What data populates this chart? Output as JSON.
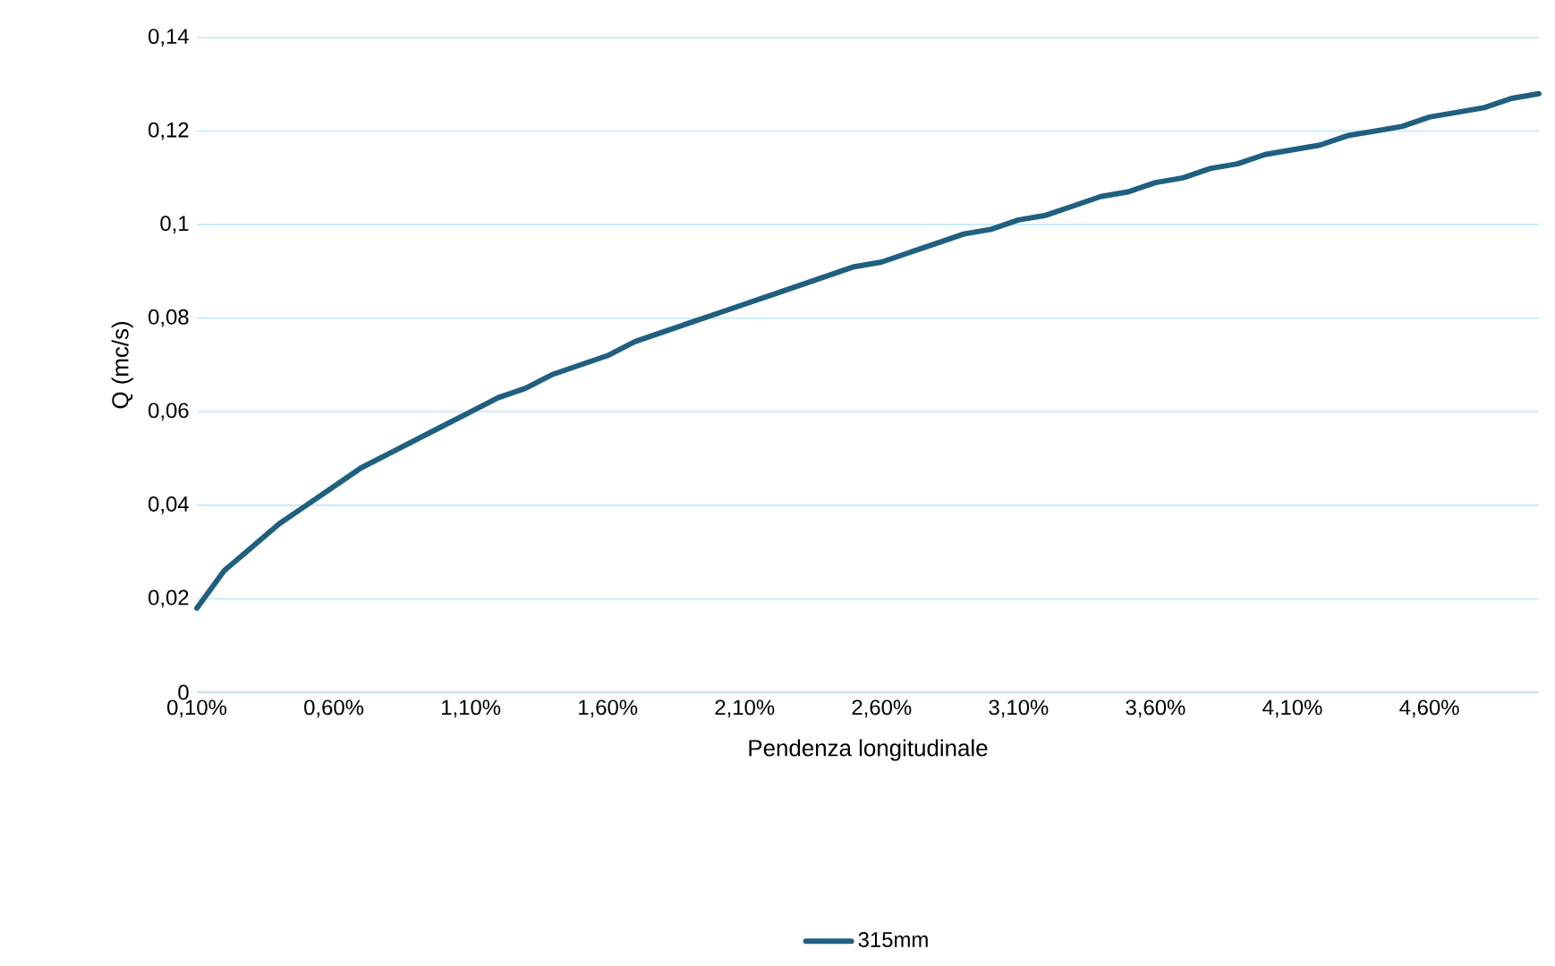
{
  "chart_data": {
    "type": "line",
    "xlabel": "Pendenza longitudinale",
    "ylabel": "Q (mc/s)",
    "categories": [
      "0,10%",
      null,
      null,
      null,
      null,
      "0,60%",
      null,
      null,
      null,
      null,
      "1,10%",
      null,
      null,
      null,
      null,
      "1,60%",
      null,
      null,
      null,
      null,
      "2,10%",
      null,
      null,
      null,
      null,
      "2,60%",
      null,
      null,
      null,
      null,
      "3,10%",
      null,
      null,
      null,
      null,
      "3,60%",
      null,
      null,
      null,
      null,
      "4,10%",
      null,
      null,
      null,
      null,
      "4,60%",
      null,
      null,
      null,
      null
    ],
    "series": [
      {
        "name": "315mm",
        "color": "#1f5f7f",
        "values": [
          0.018,
          0.026,
          0.031,
          0.036,
          0.04,
          0.044,
          0.048,
          0.051,
          0.054,
          0.057,
          0.06,
          0.063,
          0.065,
          0.068,
          0.07,
          0.072,
          0.075,
          0.077,
          0.079,
          0.081,
          0.083,
          0.085,
          0.087,
          0.089,
          0.091,
          0.092,
          0.094,
          0.096,
          0.098,
          0.099,
          0.101,
          0.102,
          0.104,
          0.106,
          0.107,
          0.109,
          0.11,
          0.112,
          0.113,
          0.115,
          0.116,
          0.117,
          0.119,
          0.12,
          0.121,
          0.123,
          0.124,
          0.125,
          0.127,
          0.128
        ]
      }
    ],
    "ylim": [
      0,
      0.14
    ],
    "yticks": [
      0,
      {
        "value": 0.02,
        "label": "0,02"
      },
      {
        "value": 0.04,
        "label": "0,04"
      },
      {
        "value": 0.06,
        "label": "0,06"
      },
      {
        "value": 0.08,
        "label": "0,08"
      },
      {
        "value": 0.1,
        "label": "0,1"
      },
      {
        "value": 0.12,
        "label": "0,12"
      },
      {
        "value": 0.14,
        "label": "0,14"
      }
    ],
    "grid": "y",
    "legend": "bottom",
    "marker": "none",
    "line_style": "solid"
  }
}
